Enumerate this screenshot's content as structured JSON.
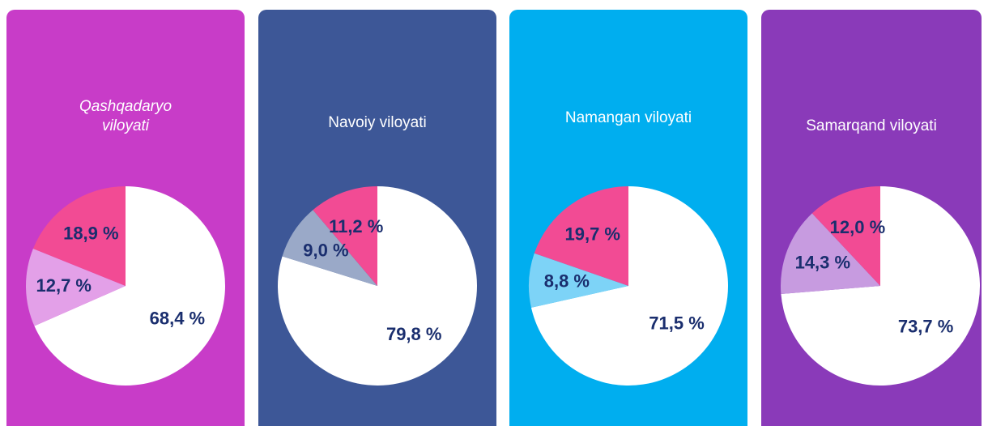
{
  "chart_data": [
    {
      "type": "pie",
      "title": "Qashqadaryo viloyati",
      "background": "#c83cc8",
      "values": [
        68.4,
        12.7,
        18.9
      ],
      "value_labels": [
        "68,4 %",
        "12,7 %",
        "18,9 %"
      ],
      "colors": [
        "#ffffff",
        "#e3a0e8",
        "#f24b94"
      ]
    },
    {
      "type": "pie",
      "title": "Navoiy viloyati",
      "background": "#3d5797",
      "values": [
        79.8,
        9.0,
        11.2
      ],
      "value_labels": [
        "79,8 %",
        "9,0 %",
        "11,2 %"
      ],
      "colors": [
        "#ffffff",
        "#9aa9c8",
        "#f24b94"
      ]
    },
    {
      "type": "pie",
      "title": "Namangan viloyati",
      "background": "#00aeef",
      "values": [
        71.5,
        8.8,
        19.7
      ],
      "value_labels": [
        "71,5 %",
        "8,8 %",
        "19,7 %"
      ],
      "colors": [
        "#ffffff",
        "#7dd3f7",
        "#f24b94"
      ]
    },
    {
      "type": "pie",
      "title": "Samarqand viloyati",
      "background": "#8a3ab9",
      "values": [
        73.7,
        14.3,
        12.0
      ],
      "value_labels": [
        "73,7 %",
        "14,3 %",
        "12,0 %"
      ],
      "colors": [
        "#ffffff",
        "#c79be0",
        "#f24b94"
      ]
    }
  ]
}
